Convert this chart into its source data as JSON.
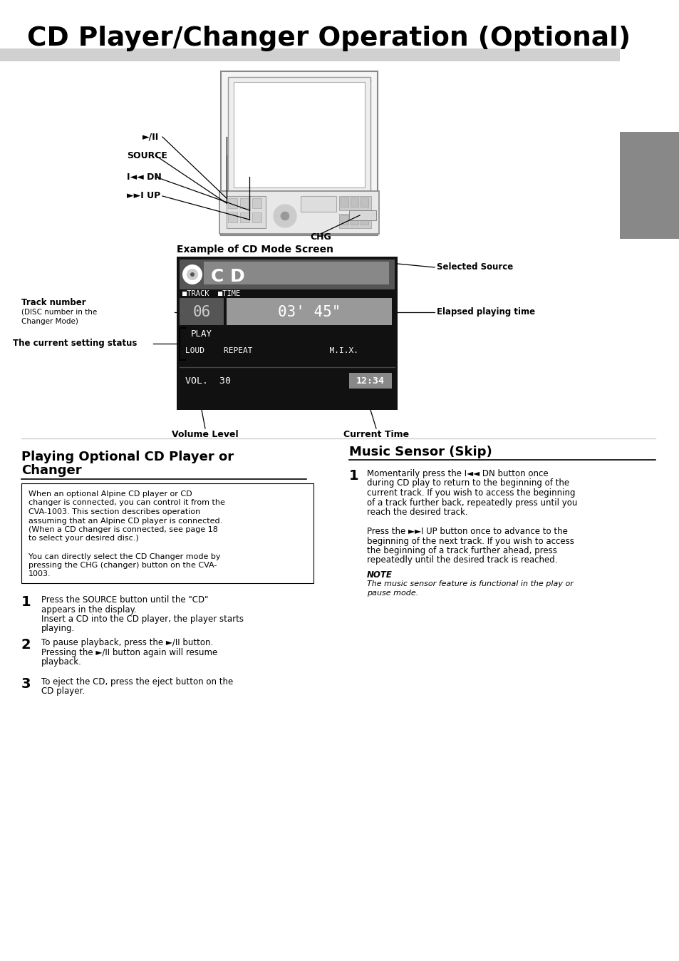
{
  "title": "CD Player/Changer Operation (Optional)",
  "bg_color": "#ffffff",
  "title_underline_color": "#c0c0c0",
  "screen_bg": "#111111",
  "gray_tab_color": "#888888",
  "section_left_title_line1": "Playing Optional CD Player or",
  "section_left_title_line2": "Changer",
  "section_right_title": "Music Sensor (Skip)",
  "screen_label_example": "Example of CD Mode Screen",
  "screen_label_selected": "Selected Source",
  "screen_label_track": "Track number",
  "screen_label_track2": "(DISC number in the\nChanger Mode)",
  "screen_label_elapsed": "Elapsed playing time",
  "screen_label_status": "The current setting status",
  "screen_label_vol": "Volume Level",
  "screen_label_time": "Current Time",
  "screen_cd_text": "C D",
  "screen_track_num": "06",
  "screen_time_val": "03' 45\"",
  "screen_play": "PLAY",
  "screen_loud_repeat": "LOUD    REPEAT                M.I.X.",
  "screen_vol": "VOL.  30",
  "screen_clock": "12:34",
  "diagram_playii": "►/II",
  "diagram_source": "SOURCE",
  "diagram_dn": "I◄◄ DN",
  "diagram_up": "►►I UP",
  "diagram_chg": "CHG",
  "left_box_lines": [
    "When an optional Alpine CD player or CD",
    "changer is connected, you can control it from the",
    "CVA-1003. This section describes operation",
    "assuming that an Alpine CD player is connected.",
    "(When a CD changer is connected, see page 18",
    "to select your desired disc.)",
    "",
    "You can directly select the CD Changer mode by",
    "pressing the CHG (changer) button on the CVA-",
    "1003."
  ],
  "step1_lines": [
    "Press the SOURCE button until the \"CD\"",
    "appears in the display.",
    "Insert a CD into the CD player, the player starts",
    "playing."
  ],
  "step2_lines": [
    "To pause playback, press the ►/II button.",
    "Pressing the ►/II button again will resume",
    "playback."
  ],
  "step3_lines": [
    "To eject the CD, press the eject button on the",
    "CD player."
  ],
  "right_step1_lines": [
    "Momentarily press the I◄◄ DN button once",
    "during CD play to return to the beginning of the",
    "current track. If you wish to access the beginning",
    "of a track further back, repeatedly press until you",
    "reach the desired track.",
    "",
    "Press the ►►I UP button once to advance to the",
    "beginning of the next track. If you wish to access",
    "the beginning of a track further ahead, press",
    "repeatedly until the desired track is reached."
  ],
  "note_title": "NOTE",
  "note_lines": [
    "The music sensor feature is functional in the play or",
    "pause mode."
  ]
}
